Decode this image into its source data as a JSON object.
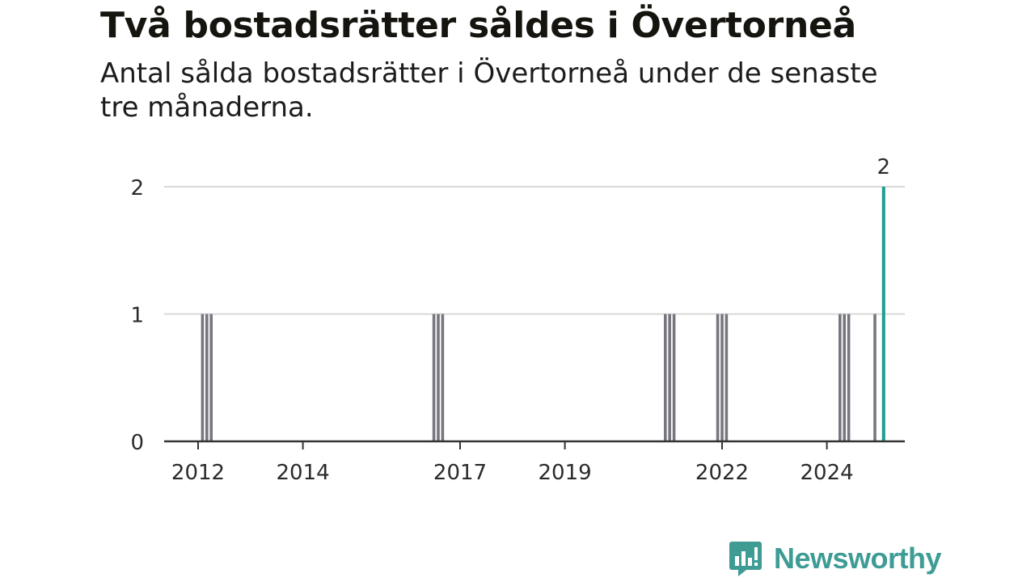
{
  "title": "Två bostadsrätter såldes i Övertorneå",
  "subtitle": "Antal sålda bostadsrätter i Övertorneå under de senaste tre månaderna.",
  "brand": {
    "name": "Newsworthy",
    "color": "#3e9c95"
  },
  "colors": {
    "bar": "#77767e",
    "highlight": "#1a9e94",
    "grid": "#d9d9d9",
    "axis": "#333333"
  },
  "chart_data": {
    "type": "bar",
    "title": "Två bostadsrätter såldes i Övertorneå",
    "subtitle": "Antal sålda bostadsrätter i Övertorneå under de senaste tre månaderna.",
    "xlabel": "",
    "ylabel": "",
    "ylim": [
      0,
      2
    ],
    "yticks": [
      0,
      1,
      2
    ],
    "xticks": [
      "2012",
      "2014",
      "2017",
      "2019",
      "2022",
      "2024"
    ],
    "grid": true,
    "x_unit": "month",
    "period": "three-month rolling total",
    "highlight_label": "2",
    "points": [
      {
        "date": "2012-02",
        "value": 1
      },
      {
        "date": "2012-03",
        "value": 1
      },
      {
        "date": "2012-04",
        "value": 1
      },
      {
        "date": "2016-07",
        "value": 1
      },
      {
        "date": "2016-08",
        "value": 1
      },
      {
        "date": "2016-09",
        "value": 1
      },
      {
        "date": "2020-12",
        "value": 1
      },
      {
        "date": "2021-01",
        "value": 1
      },
      {
        "date": "2021-02",
        "value": 1
      },
      {
        "date": "2021-12",
        "value": 1
      },
      {
        "date": "2022-01",
        "value": 1
      },
      {
        "date": "2022-02",
        "value": 1
      },
      {
        "date": "2024-04",
        "value": 1
      },
      {
        "date": "2024-05",
        "value": 1
      },
      {
        "date": "2024-06",
        "value": 1
      },
      {
        "date": "2024-12",
        "value": 1
      },
      {
        "date": "2025-02",
        "value": 2,
        "highlight": true
      }
    ]
  }
}
